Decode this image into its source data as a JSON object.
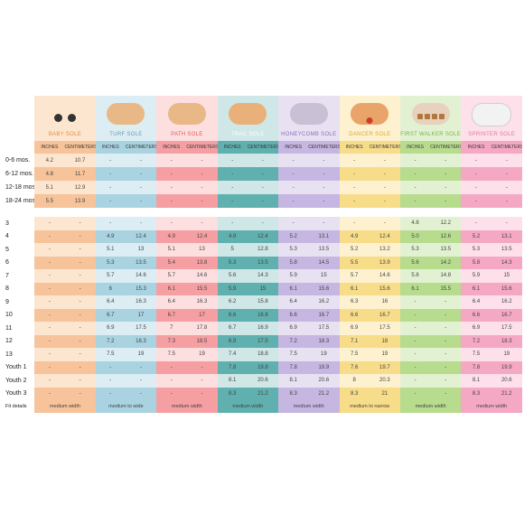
{
  "row_labels": {
    "baby": [
      "0-6 mos.",
      "6-12 mos.",
      "12-18 mos.",
      "18-24 mos."
    ],
    "main": [
      "3",
      "4",
      "5",
      "6",
      "7",
      "8",
      "9",
      "10",
      "11",
      "12",
      "13",
      "Youth 1",
      "Youth 2",
      "Youth 3"
    ],
    "fit": "Fit details"
  },
  "units": {
    "in": "INCHES",
    "cm": "CENTIMETERS"
  },
  "soles": [
    {
      "name": "BABY SOLE",
      "icon": "baby-sole-icon",
      "light": "#fde6cf",
      "dark": "#f7c39a",
      "nameColor": "#e58a3c",
      "baby": [
        [
          "4.2",
          "10.7"
        ],
        [
          "4.8",
          "11.7"
        ],
        [
          "5.1",
          "12.9"
        ],
        [
          "5.5",
          "13.9"
        ]
      ],
      "main": [
        [
          "-",
          "-"
        ],
        [
          "-",
          "-"
        ],
        [
          "-",
          "-"
        ],
        [
          "-",
          "-"
        ],
        [
          "-",
          "-"
        ],
        [
          "-",
          "-"
        ],
        [
          "-",
          "-"
        ],
        [
          "-",
          "-"
        ],
        [
          "-",
          "-"
        ],
        [
          "-",
          "-"
        ],
        [
          "-",
          "-"
        ],
        [
          "-",
          "-"
        ],
        [
          "-",
          "-"
        ],
        [
          "-",
          "-"
        ]
      ],
      "fit": "medium width"
    },
    {
      "name": "TURF SOLE",
      "icon": "turf-sole-icon",
      "light": "#dcedf3",
      "dark": "#a9d3e0",
      "nameColor": "#5aa2ba",
      "baby": [
        [
          "-",
          "-"
        ],
        [
          "-",
          "-"
        ],
        [
          "-",
          "-"
        ],
        [
          "-",
          "-"
        ]
      ],
      "main": [
        [
          "-",
          "-"
        ],
        [
          "4.9",
          "12.4"
        ],
        [
          "5.1",
          "13"
        ],
        [
          "5.3",
          "13.5"
        ],
        [
          "5.7",
          "14.6"
        ],
        [
          "6",
          "15.3"
        ],
        [
          "6.4",
          "16.3"
        ],
        [
          "6.7",
          "17"
        ],
        [
          "6.9",
          "17.5"
        ],
        [
          "7.2",
          "18.3"
        ],
        [
          "7.5",
          "19"
        ],
        [
          "-",
          "-"
        ],
        [
          "-",
          "-"
        ],
        [
          "-",
          "-"
        ]
      ],
      "fit": "medium to wide"
    },
    {
      "name": "PATH SOLE",
      "icon": "path-sole-icon",
      "light": "#fddfe0",
      "dark": "#f59fa3",
      "nameColor": "#e05a62",
      "baby": [
        [
          "-",
          "-"
        ],
        [
          "-",
          "-"
        ],
        [
          "-",
          "-"
        ],
        [
          "-",
          "-"
        ]
      ],
      "main": [
        [
          "-",
          "-"
        ],
        [
          "4.9",
          "12.4"
        ],
        [
          "5.1",
          "13"
        ],
        [
          "5.4",
          "13.8"
        ],
        [
          "5.7",
          "14.6"
        ],
        [
          "6.1",
          "15.5"
        ],
        [
          "6.4",
          "16.3"
        ],
        [
          "6.7",
          "17"
        ],
        [
          "7",
          "17.8"
        ],
        [
          "7.3",
          "18.5"
        ],
        [
          "7.5",
          "19"
        ],
        [
          "-",
          "-"
        ],
        [
          "-",
          "-"
        ],
        [
          "-",
          "-"
        ]
      ],
      "fit": "medium width"
    },
    {
      "name": "TRAC SOLE",
      "icon": "trac-sole-icon",
      "light": "#cfe7e6",
      "dark": "#5fb0ae",
      "nameColor": "#ffffff",
      "baby": [
        [
          "-",
          "-"
        ],
        [
          "-",
          "-"
        ],
        [
          "-",
          "-"
        ],
        [
          "-",
          "-"
        ]
      ],
      "main": [
        [
          "-",
          "-"
        ],
        [
          "4.9",
          "12.4"
        ],
        [
          "5",
          "12.8"
        ],
        [
          "5.3",
          "13.5"
        ],
        [
          "5.6",
          "14.3"
        ],
        [
          "5.9",
          "15"
        ],
        [
          "6.2",
          "15.8"
        ],
        [
          "6.6",
          "16.8"
        ],
        [
          "6.7",
          "16.9"
        ],
        [
          "6.9",
          "17.5"
        ],
        [
          "7.4",
          "18.8"
        ],
        [
          "7.8",
          "19.8"
        ],
        [
          "8.1",
          "20.6"
        ],
        [
          "8.3",
          "21.2"
        ]
      ],
      "fit": "medium width"
    },
    {
      "name": "HONEYCOMB SOLE",
      "icon": "honeycomb-sole-icon",
      "light": "#e8e1f2",
      "dark": "#c6b6e2",
      "nameColor": "#8a6fc0",
      "baby": [
        [
          "-",
          "-"
        ],
        [
          "-",
          "-"
        ],
        [
          "-",
          "-"
        ],
        [
          "-",
          "-"
        ]
      ],
      "main": [
        [
          "-",
          "-"
        ],
        [
          "5.2",
          "13.1"
        ],
        [
          "5.3",
          "13.5"
        ],
        [
          "5.8",
          "14.5"
        ],
        [
          "5.9",
          "15"
        ],
        [
          "6.1",
          "15.6"
        ],
        [
          "6.4",
          "16.2"
        ],
        [
          "6.6",
          "16.7"
        ],
        [
          "6.9",
          "17.5"
        ],
        [
          "7.2",
          "18.3"
        ],
        [
          "7.5",
          "19"
        ],
        [
          "7.8",
          "19.9"
        ],
        [
          "8.1",
          "20.6"
        ],
        [
          "8.3",
          "21.2"
        ]
      ],
      "fit": "medium width"
    },
    {
      "name": "DANCER SOLE",
      "icon": "dancer-sole-icon",
      "light": "#fdf1cf",
      "dark": "#f7dc8a",
      "nameColor": "#e2a92c",
      "baby": [
        [
          "-",
          "-"
        ],
        [
          "-",
          "-"
        ],
        [
          "-",
          "-"
        ],
        [
          "-",
          "-"
        ]
      ],
      "main": [
        [
          "-",
          "-"
        ],
        [
          "4.9",
          "12.4"
        ],
        [
          "5.2",
          "13.2"
        ],
        [
          "5.5",
          "13.9"
        ],
        [
          "5.7",
          "14.6"
        ],
        [
          "6.1",
          "15.6"
        ],
        [
          "6.3",
          "16"
        ],
        [
          "6.6",
          "16.7"
        ],
        [
          "6.9",
          "17.5"
        ],
        [
          "7.1",
          "18"
        ],
        [
          "7.5",
          "19"
        ],
        [
          "7.6",
          "19.7"
        ],
        [
          "8",
          "20.3"
        ],
        [
          "8.3",
          "21"
        ]
      ],
      "fit": "medium to narrow"
    },
    {
      "name": "FIRST WALKER SOLE",
      "icon": "first-walker-sole-icon",
      "light": "#e3f1d3",
      "dark": "#b7dc8e",
      "nameColor": "#7cb342",
      "baby": [
        [
          "-",
          "-"
        ],
        [
          "-",
          "-"
        ],
        [
          "-",
          "-"
        ],
        [
          "-",
          "-"
        ]
      ],
      "main": [
        [
          "4.8",
          "12.2"
        ],
        [
          "5.0",
          "12.6"
        ],
        [
          "5.3",
          "13.5"
        ],
        [
          "5.6",
          "14.2"
        ],
        [
          "5.8",
          "14.8"
        ],
        [
          "6.1",
          "15.5"
        ],
        [
          "-",
          "-"
        ],
        [
          "-",
          "-"
        ],
        [
          "-",
          "-"
        ],
        [
          "-",
          "-"
        ],
        [
          "-",
          "-"
        ],
        [
          "-",
          "-"
        ],
        [
          "-",
          "-"
        ],
        [
          "-",
          "-"
        ]
      ],
      "fit": "medium width"
    },
    {
      "name": "SPRINTER SOLE",
      "icon": "sprinter-sole-icon",
      "light": "#fde0ea",
      "dark": "#f5a8c4",
      "nameColor": "#e07aa0",
      "baby": [
        [
          "-",
          "-"
        ],
        [
          "-",
          "-"
        ],
        [
          "-",
          "-"
        ],
        [
          "-",
          "-"
        ]
      ],
      "main": [
        [
          "-",
          "-"
        ],
        [
          "5.2",
          "13.1"
        ],
        [
          "5.3",
          "13.5"
        ],
        [
          "5.8",
          "14.3"
        ],
        [
          "5.9",
          "15"
        ],
        [
          "6.1",
          "15.6"
        ],
        [
          "6.4",
          "16.2"
        ],
        [
          "6.6",
          "16.7"
        ],
        [
          "6.9",
          "17.5"
        ],
        [
          "7.2",
          "18.3"
        ],
        [
          "7.5",
          "19"
        ],
        [
          "7.8",
          "19.9"
        ],
        [
          "8.1",
          "20.6"
        ],
        [
          "8.3",
          "21.2"
        ]
      ],
      "fit": "medium width"
    }
  ]
}
